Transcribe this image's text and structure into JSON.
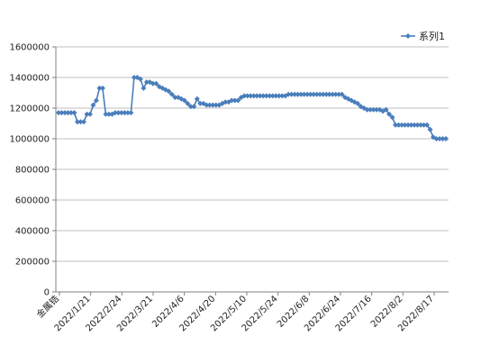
{
  "chart_data": {
    "type": "line",
    "ylim": [
      0,
      1600000
    ],
    "yticks": [
      "0",
      "200000",
      "400000",
      "600000",
      "800000",
      "1000000",
      "1200000",
      "1400000",
      "1600000"
    ],
    "xticks": [
      "金属锆",
      "2022/1/21",
      "2022/2/24",
      "2022/3/21",
      "2022/4/6",
      "2022/4/20",
      "2022/5/10",
      "2022/5/24",
      "2022/6/8",
      "2022/6/24",
      "2022/7/16",
      "2022/8/2",
      "2022/8/17"
    ],
    "series": [
      {
        "name": "系列1",
        "color": "#4a7ebb",
        "values": [
          1170000,
          1170000,
          1170000,
          1170000,
          1170000,
          1170000,
          1110000,
          1110000,
          1110000,
          1160000,
          1160000,
          1220000,
          1250000,
          1330000,
          1330000,
          1160000,
          1160000,
          1160000,
          1170000,
          1170000,
          1170000,
          1170000,
          1170000,
          1170000,
          1400000,
          1400000,
          1390000,
          1330000,
          1370000,
          1370000,
          1360000,
          1360000,
          1340000,
          1330000,
          1320000,
          1310000,
          1290000,
          1270000,
          1270000,
          1260000,
          1250000,
          1230000,
          1210000,
          1210000,
          1260000,
          1230000,
          1230000,
          1220000,
          1220000,
          1220000,
          1220000,
          1220000,
          1230000,
          1240000,
          1240000,
          1250000,
          1250000,
          1250000,
          1270000,
          1280000,
          1280000,
          1280000,
          1280000,
          1280000,
          1280000,
          1280000,
          1280000,
          1280000,
          1280000,
          1280000,
          1280000,
          1280000,
          1280000,
          1290000,
          1290000,
          1290000,
          1290000,
          1290000,
          1290000,
          1290000,
          1290000,
          1290000,
          1290000,
          1290000,
          1290000,
          1290000,
          1290000,
          1290000,
          1290000,
          1290000,
          1290000,
          1270000,
          1260000,
          1250000,
          1240000,
          1230000,
          1210000,
          1200000,
          1190000,
          1190000,
          1190000,
          1190000,
          1190000,
          1180000,
          1190000,
          1160000,
          1140000,
          1090000,
          1090000,
          1090000,
          1090000,
          1090000,
          1090000,
          1090000,
          1090000,
          1090000,
          1090000,
          1090000,
          1060000,
          1010000,
          1000000,
          1000000,
          1000000,
          1000000
        ]
      }
    ]
  }
}
